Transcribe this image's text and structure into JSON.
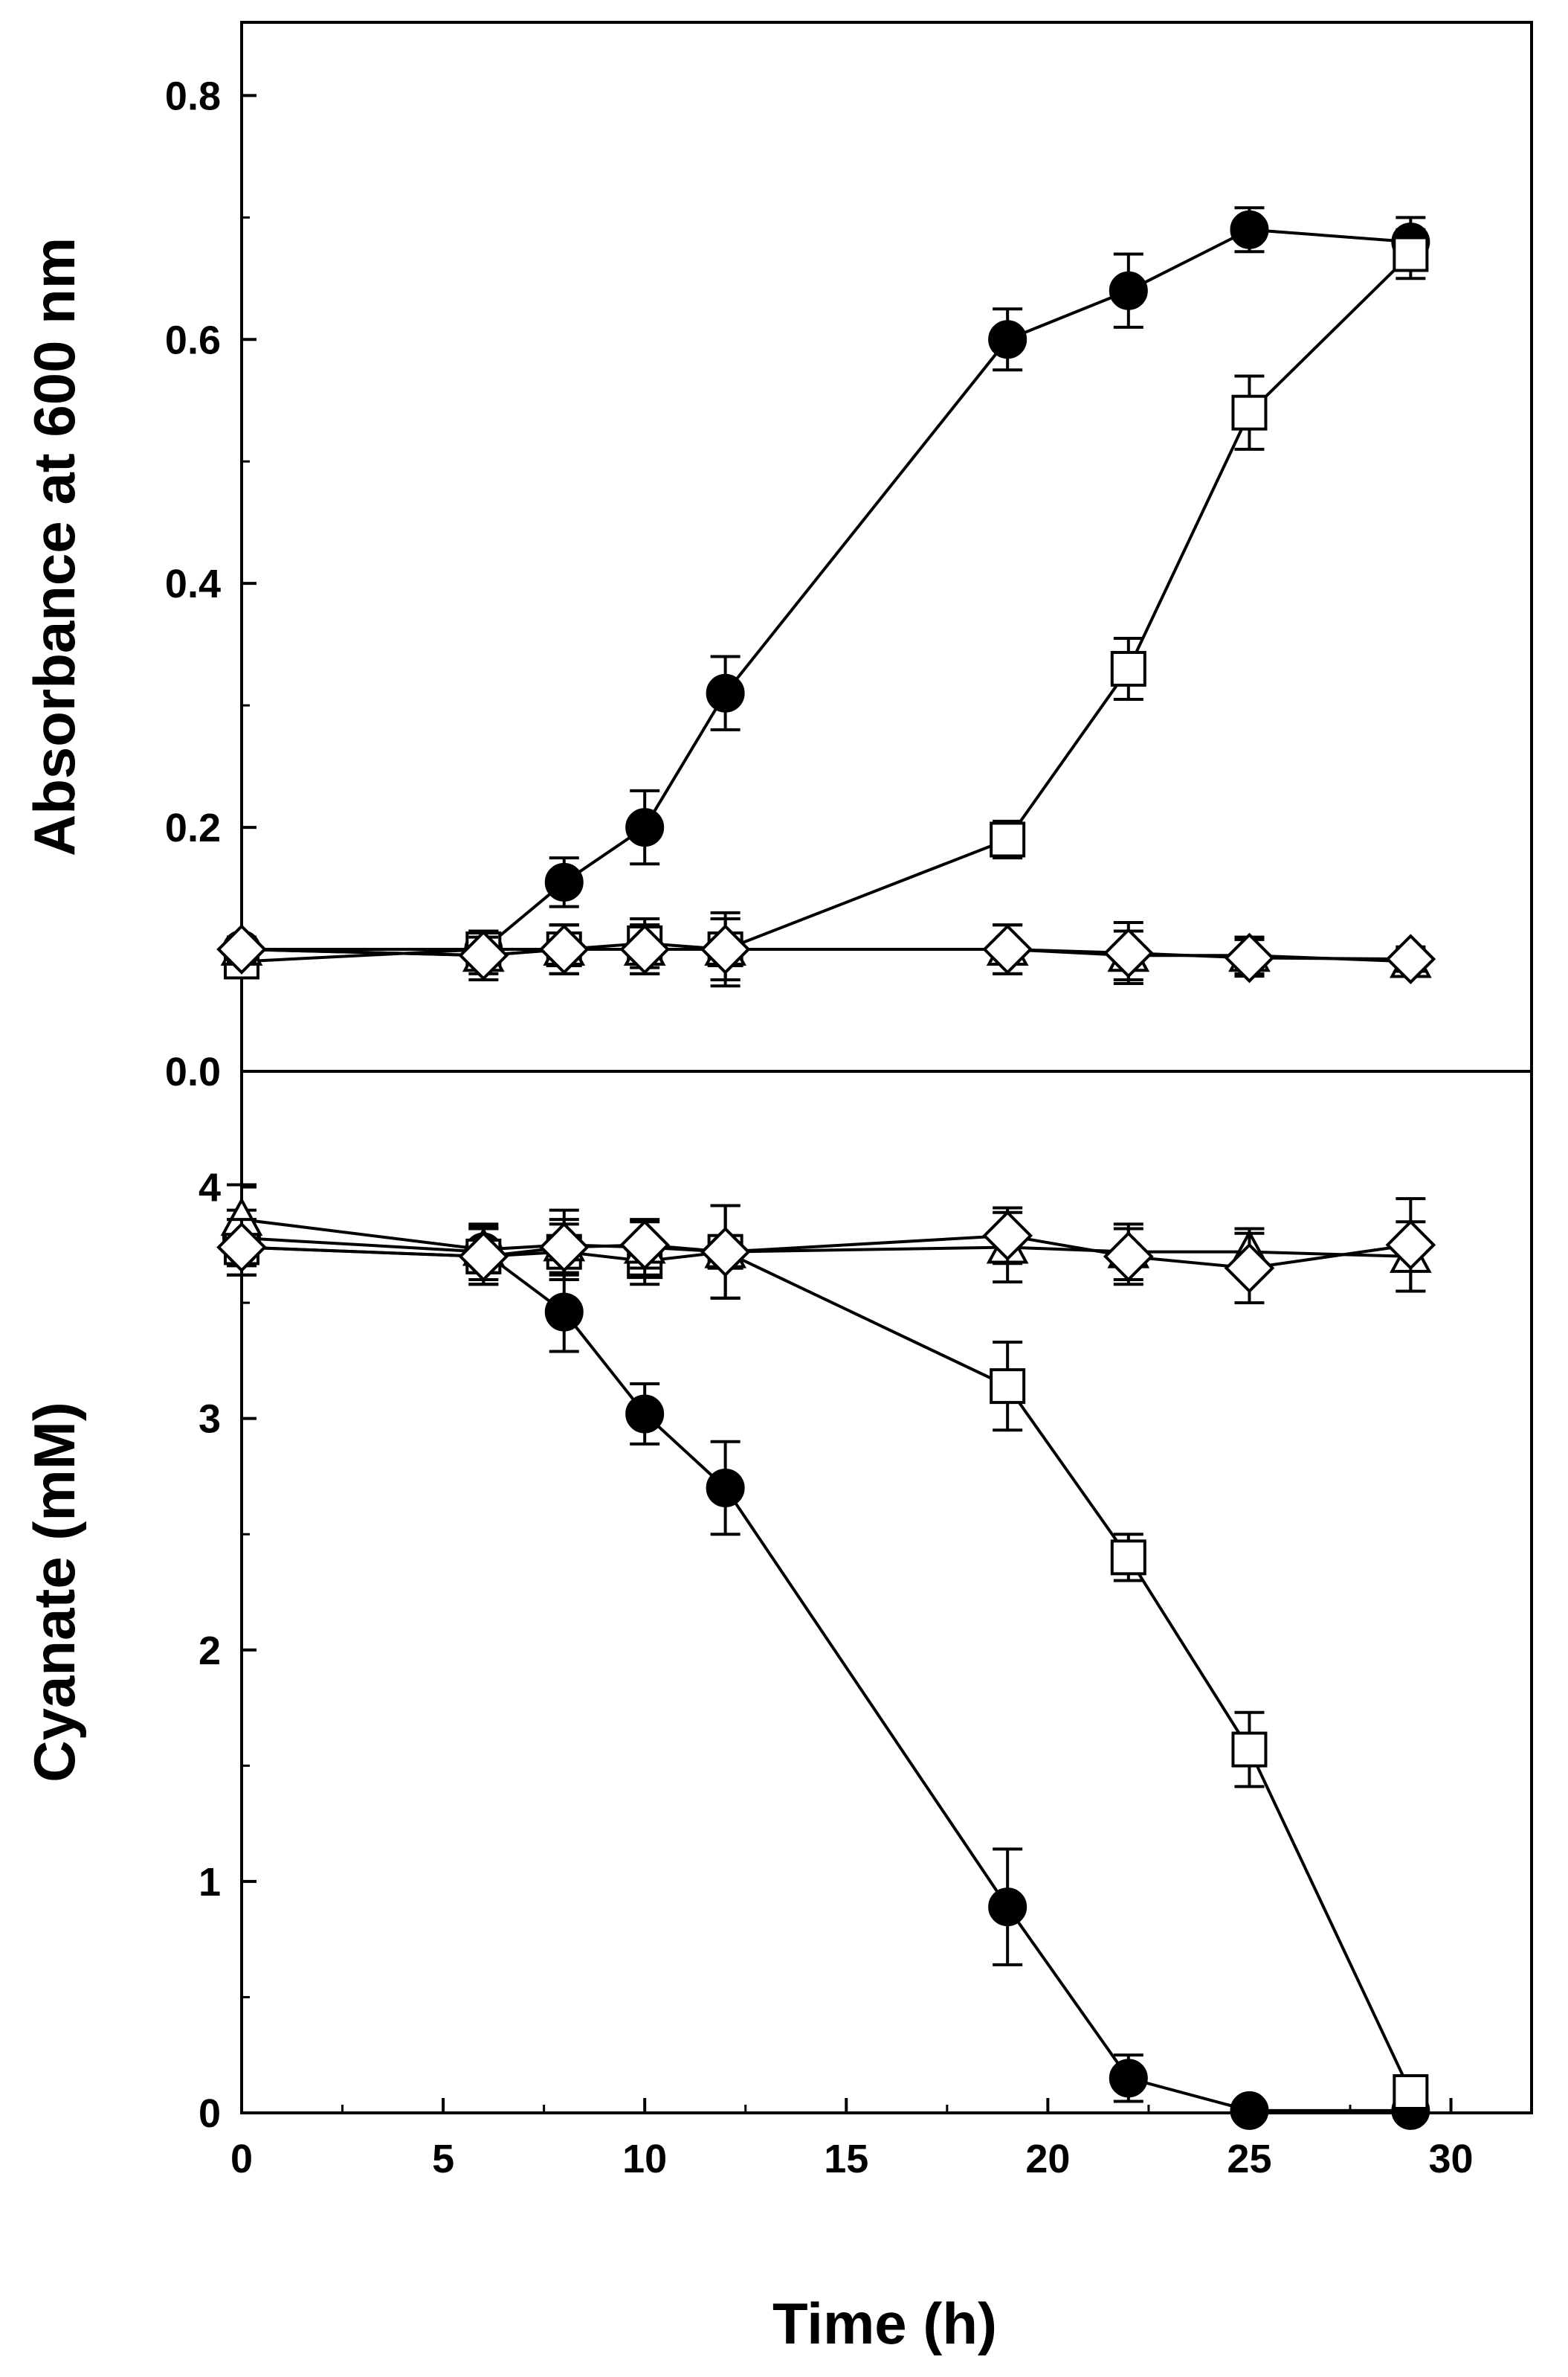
{
  "chart_data": [
    {
      "type": "line",
      "title": "",
      "xlabel": "",
      "ylabel": "Absorbance at 600 nm",
      "xlim": [
        0,
        32
      ],
      "ylim": [
        0,
        0.86
      ],
      "yticks": [
        0.0,
        0.2,
        0.4,
        0.6,
        0.8
      ],
      "ytick_labels": [
        "0.0",
        "0.2",
        "0.4",
        "0.6",
        "0.8"
      ],
      "series": [
        {
          "name": "filled circle",
          "marker": "circle",
          "fill": "#000000",
          "x": [
            0,
            6,
            8,
            10,
            12,
            19,
            22,
            25,
            29
          ],
          "y": [
            0.1,
            0.1,
            0.155,
            0.2,
            0.31,
            0.6,
            0.64,
            0.69,
            0.68
          ],
          "err": [
            0.01,
            0.01,
            0.02,
            0.03,
            0.03,
            0.025,
            0.03,
            0.018,
            0.02
          ]
        },
        {
          "name": "open square",
          "marker": "square",
          "fill": "#ffffff",
          "x": [
            0,
            6,
            8,
            10,
            12,
            19,
            22,
            25,
            29
          ],
          "y": [
            0.09,
            0.1,
            0.1,
            0.105,
            0.1,
            0.19,
            0.33,
            0.54,
            0.67
          ],
          "err": [
            0.01,
            0.015,
            0.02,
            0.02,
            0.025,
            0.015,
            0.025,
            0.03,
            0.02
          ]
        },
        {
          "name": "open triangle",
          "marker": "triangle",
          "fill": "#ffffff",
          "x": [
            0,
            6,
            8,
            10,
            12,
            19,
            22,
            25,
            29
          ],
          "y": [
            0.1,
            0.095,
            0.1,
            0.1,
            0.1,
            0.1,
            0.095,
            0.095,
            0.09
          ],
          "err": [
            0.01,
            0.02,
            0.02,
            0.02,
            0.025,
            0.02,
            0.02,
            0.015,
            0.01
          ]
        },
        {
          "name": "open diamond",
          "marker": "diamond",
          "fill": "#ffffff",
          "x": [
            0,
            6,
            8,
            10,
            12,
            19,
            22,
            25,
            29
          ],
          "y": [
            0.1,
            0.095,
            0.1,
            0.1,
            0.1,
            0.1,
            0.097,
            0.093,
            0.092
          ],
          "err": [
            0.01,
            0.015,
            0.02,
            0.02,
            0.03,
            0.02,
            0.025,
            0.015,
            0.01
          ]
        }
      ]
    },
    {
      "type": "line",
      "title": "",
      "xlabel": "Time (h)",
      "ylabel": "Cyanate (mM)",
      "xlim": [
        0,
        32
      ],
      "xticks": [
        0,
        5,
        10,
        15,
        20,
        25,
        30
      ],
      "xtick_labels": [
        "0",
        "5",
        "10",
        "15",
        "20",
        "25",
        "30"
      ],
      "ylim": [
        0,
        4.5
      ],
      "yticks": [
        0,
        1,
        2,
        3,
        4
      ],
      "ytick_labels": [
        "0",
        "1",
        "2",
        "3",
        "4"
      ],
      "series": [
        {
          "name": "filled circle",
          "marker": "circle",
          "fill": "#000000",
          "x": [
            0,
            6,
            8,
            10,
            12,
            19,
            22,
            25,
            29
          ],
          "y": [
            3.78,
            3.72,
            3.46,
            3.02,
            2.7,
            0.89,
            0.15,
            0.01,
            0.01
          ],
          "err": [
            0.12,
            0.12,
            0.17,
            0.13,
            0.2,
            0.25,
            0.1,
            0.02,
            0.02
          ]
        },
        {
          "name": "open square",
          "marker": "square",
          "fill": "#ffffff",
          "x": [
            0,
            6,
            8,
            10,
            12,
            19,
            22,
            25,
            29
          ],
          "y": [
            3.74,
            3.7,
            3.72,
            3.68,
            3.72,
            3.14,
            2.4,
            1.57,
            0.09
          ],
          "err": [
            0.12,
            0.12,
            0.12,
            0.1,
            0.2,
            0.19,
            0.1,
            0.16,
            0.03
          ]
        },
        {
          "name": "open triangle",
          "marker": "triangle",
          "fill": "#ffffff",
          "x": [
            0,
            6,
            8,
            10,
            12,
            19,
            22,
            25,
            29
          ],
          "y": [
            3.86,
            3.73,
            3.75,
            3.74,
            3.72,
            3.74,
            3.72,
            3.72,
            3.7
          ],
          "err": [
            0.15,
            0.1,
            0.15,
            0.12,
            0.2,
            0.15,
            0.12,
            0.1,
            0.15
          ]
        },
        {
          "name": "open diamond",
          "marker": "diamond",
          "fill": "#ffffff",
          "x": [
            0,
            6,
            8,
            10,
            12,
            19,
            22,
            25,
            29
          ],
          "y": [
            3.74,
            3.7,
            3.74,
            3.75,
            3.72,
            3.79,
            3.7,
            3.65,
            3.75
          ],
          "err": [
            0.12,
            0.12,
            0.12,
            0.1,
            0.2,
            0.12,
            0.12,
            0.15,
            0.2
          ]
        }
      ]
    }
  ]
}
